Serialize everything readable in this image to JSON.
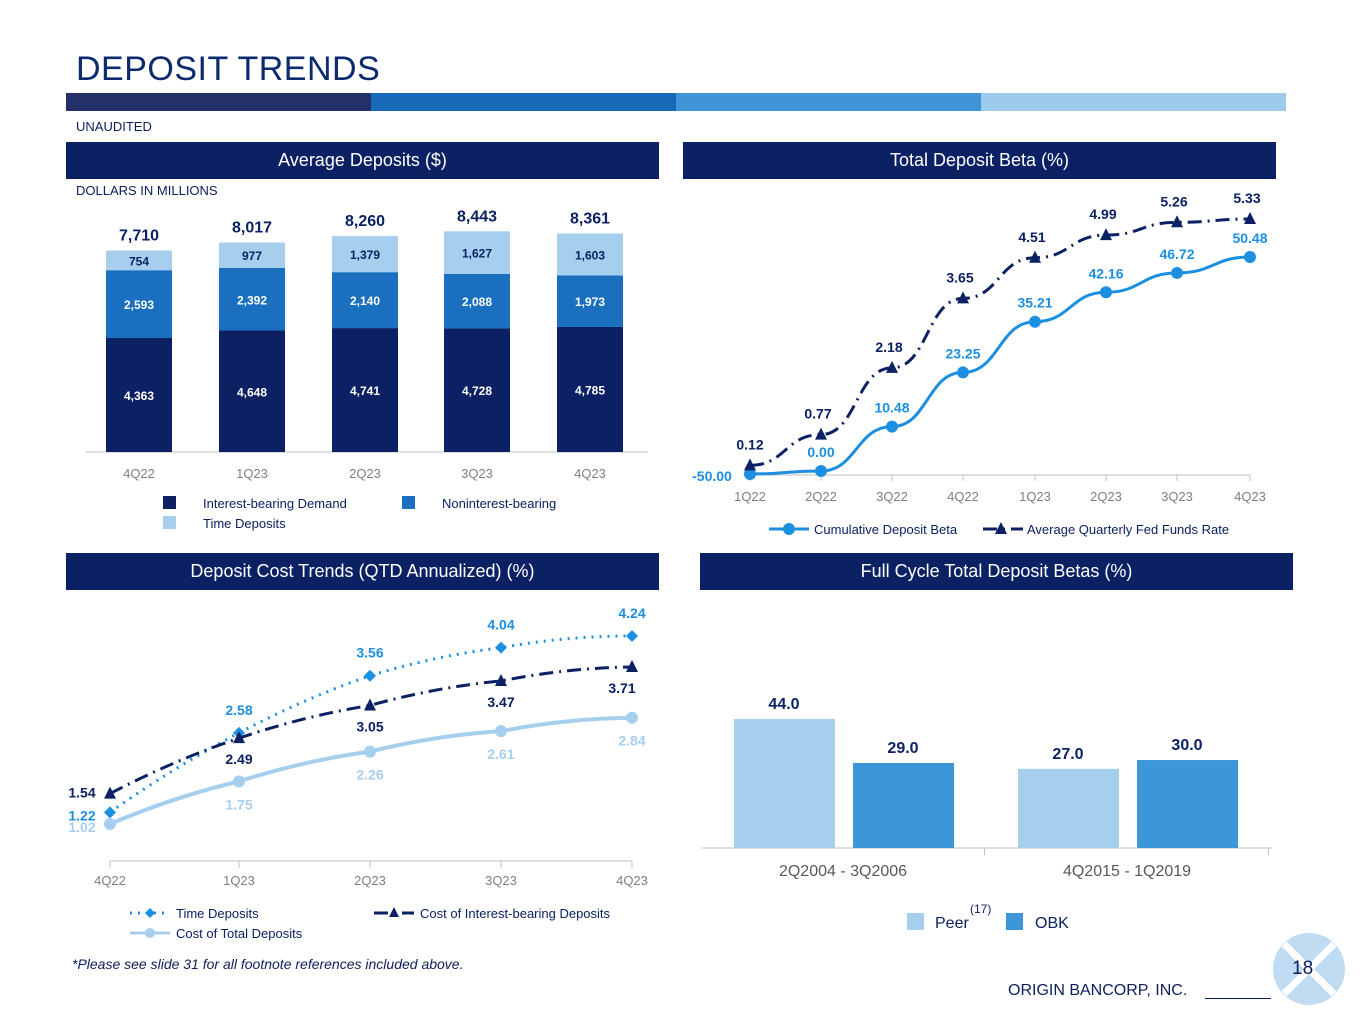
{
  "page": {
    "title": "DEPOSIT TRENDS",
    "unaudited": "UNAUDITED",
    "footnote": "*Please see slide 31 for all footnote references included above.",
    "company": "ORIGIN BANCORP, INC.",
    "page_number": "18"
  },
  "colors": {
    "navy": "#0b2163",
    "mid_blue": "#1a6fbf",
    "light_blue": "#a6cfee",
    "bright_blue": "#1c8fe0",
    "stripe": [
      "#23306a",
      "#166ab8",
      "#3f95d8",
      "#9dcbec"
    ]
  },
  "chart_data": [
    {
      "id": "average-deposits",
      "type": "bar",
      "stacked": true,
      "title": "Average Deposits ($)",
      "subtitle": "DOLLARS IN MILLIONS",
      "categories": [
        "4Q22",
        "1Q23",
        "2Q23",
        "3Q23",
        "4Q23"
      ],
      "series": [
        {
          "name": "Interest-bearing Demand",
          "color": "#0b2163",
          "values": [
            4363,
            4648,
            4741,
            4728,
            4785
          ],
          "labels": [
            "4,363",
            "4,648",
            "4,741",
            "4,728",
            "4,785"
          ]
        },
        {
          "name": "Noninterest-bearing",
          "color": "#1a6fbf",
          "values": [
            2593,
            2392,
            2140,
            2088,
            1973
          ],
          "labels": [
            "2,593",
            "2,392",
            "2,140",
            "2,088",
            "1,973"
          ]
        },
        {
          "name": "Time Deposits",
          "color": "#a6cfee",
          "values": [
            754,
            977,
            1379,
            1627,
            1603
          ],
          "labels": [
            "754",
            "977",
            "1,379",
            "1,627",
            "1,603"
          ]
        }
      ],
      "totals": [
        7710,
        8017,
        8260,
        8443,
        8361
      ],
      "total_labels": [
        "7,710",
        "8,017",
        "8,260",
        "8,443",
        "8,361"
      ],
      "ylim": [
        0,
        8800
      ]
    },
    {
      "id": "total-deposit-beta",
      "type": "line",
      "title": "Total Deposit Beta (%)",
      "categories": [
        "1Q22",
        "2Q22",
        "3Q22",
        "4Q22",
        "1Q23",
        "2Q23",
        "3Q23",
        "4Q23"
      ],
      "series": [
        {
          "name": "Cumulative Deposit Beta",
          "color": "#1c8fe0",
          "style": "solid",
          "marker": "circle",
          "values": [
            -50.0,
            0.0,
            10.48,
            23.25,
            35.21,
            42.16,
            46.72,
            50.48
          ],
          "labels": [
            "-50.00",
            "0.00",
            "10.48",
            "23.25",
            "35.21",
            "42.16",
            "46.72",
            "50.48"
          ]
        },
        {
          "name": "Average Quarterly Fed Funds Rate",
          "color": "#0b2163",
          "style": "dash-dot",
          "marker": "triangle",
          "values": [
            0.12,
            0.77,
            2.18,
            3.65,
            4.51,
            4.99,
            5.26,
            5.33
          ],
          "labels": [
            "0.12",
            "0.77",
            "2.18",
            "3.65",
            "4.51",
            "4.99",
            "5.26",
            "5.33"
          ]
        }
      ]
    },
    {
      "id": "deposit-cost-trends",
      "type": "line",
      "title": "Deposit Cost Trends (QTD Annualized) (%)",
      "categories": [
        "4Q22",
        "1Q23",
        "2Q23",
        "3Q23",
        "4Q23"
      ],
      "series": [
        {
          "name": "Time Deposits",
          "color": "#1c8fe0",
          "style": "dotted",
          "marker": "diamond",
          "values": [
            1.22,
            2.58,
            3.56,
            4.04,
            4.24
          ],
          "labels": [
            "1.22",
            "2.58",
            "3.56",
            "4.04",
            "4.24"
          ]
        },
        {
          "name": "Cost of Interest-bearing Deposits",
          "color": "#0b2163",
          "style": "dash-dot",
          "marker": "triangle",
          "values": [
            1.54,
            2.49,
            3.05,
            3.47,
            3.71
          ],
          "labels": [
            "1.54",
            "2.49",
            "3.05",
            "3.47",
            "3.71"
          ]
        },
        {
          "name": "Cost of Total Deposits",
          "color": "#a6cfee",
          "style": "solid",
          "marker": "circle",
          "values": [
            1.02,
            1.75,
            2.26,
            2.61,
            2.84
          ],
          "labels": [
            "1.02",
            "1.75",
            "2.26",
            "2.61",
            "2.84"
          ]
        }
      ],
      "ylim": [
        0.5,
        4.7
      ]
    },
    {
      "id": "full-cycle-betas",
      "type": "bar",
      "title": "Full Cycle Total Deposit Betas (%)",
      "categories": [
        "2Q2004 - 3Q2006",
        "4Q2015 - 1Q2019"
      ],
      "series": [
        {
          "name": "Peer",
          "superscript": "(17)",
          "color": "#a6cfee",
          "values": [
            44.0,
            27.0
          ],
          "labels": [
            "44.0",
            "27.0"
          ]
        },
        {
          "name": "OBK",
          "color": "#3d96d8",
          "values": [
            29.0,
            30.0
          ],
          "labels": [
            "29.0",
            "30.0"
          ]
        }
      ],
      "ylim": [
        0,
        50
      ]
    }
  ]
}
